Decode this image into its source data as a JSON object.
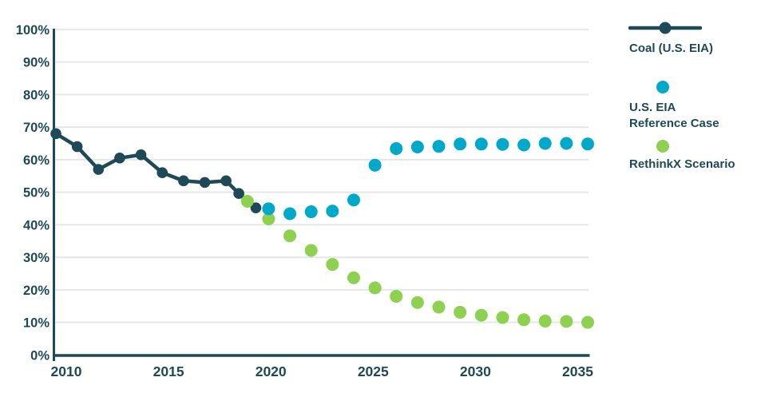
{
  "colors": {
    "navy": "#1e4956",
    "teal": "#00a9c9",
    "green": "#8ed04f",
    "gridline": "#e4e7e9",
    "background": "#ffffff",
    "axis_label": "#1e4956"
  },
  "legend": {
    "position": "right",
    "items": [
      {
        "label": "Coal (U.S. EIA)",
        "marker": "line-with-dot",
        "color": "#1e4956"
      },
      {
        "label": "U.S. EIA Reference Case",
        "marker": "dot",
        "color": "#00a9c9"
      },
      {
        "label": "RethinkX Scenario",
        "marker": "dot",
        "color": "#8ed04f"
      }
    ]
  },
  "chart_data": {
    "type": "line",
    "title": "",
    "xlabel": "",
    "ylabel": "",
    "xlim": [
      2009.9,
      2035.3
    ],
    "ylim": [
      0,
      100
    ],
    "grid": "horizontal-light",
    "legend_position": "right",
    "x_ticks": [
      "2010",
      "2015",
      "2020",
      "2025",
      "2030",
      "2035"
    ],
    "y_ticks": [
      "0%",
      "10%",
      "20%",
      "30%",
      "40%",
      "50%",
      "60%",
      "70%",
      "80%",
      "90%",
      "100%"
    ],
    "y_unit": "percent",
    "series": [
      {
        "name": "Coal (U.S. EIA)",
        "style": "line-with-dots",
        "color": "#1e4956",
        "points": [
          [
            2010,
            68
          ],
          [
            2011,
            64
          ],
          [
            2012,
            57
          ],
          [
            2013,
            60.5
          ],
          [
            2014,
            61.5
          ],
          [
            2015,
            56
          ],
          [
            2016,
            53.5
          ],
          [
            2017,
            53
          ],
          [
            2018,
            53.5
          ],
          [
            2018.6,
            49.6
          ],
          [
            2019.4,
            45.2
          ]
        ]
      },
      {
        "name": "U.S. EIA Reference Case",
        "style": "dots",
        "color": "#00a9c9",
        "points": [
          [
            2020,
            44.9
          ],
          [
            2021,
            43.4
          ],
          [
            2022,
            44
          ],
          [
            2023,
            44.2
          ],
          [
            2024,
            47.6
          ],
          [
            2025,
            58.3
          ],
          [
            2026,
            63.4
          ],
          [
            2027,
            63.9
          ],
          [
            2028,
            64.1
          ],
          [
            2029,
            64.8
          ],
          [
            2030,
            64.8
          ],
          [
            2031,
            64.7
          ],
          [
            2032,
            64.5
          ],
          [
            2033,
            65
          ],
          [
            2034,
            65
          ],
          [
            2035,
            64.8
          ]
        ]
      },
      {
        "name": "RethinkX Scenario",
        "style": "dots",
        "color": "#8ed04f",
        "points": [
          [
            2019,
            47.2
          ],
          [
            2020,
            41.8
          ],
          [
            2021,
            36.6
          ],
          [
            2022,
            32.1
          ],
          [
            2023,
            27.8
          ],
          [
            2024,
            23.7
          ],
          [
            2025,
            20.6
          ],
          [
            2026,
            18
          ],
          [
            2027,
            16.1
          ],
          [
            2028,
            14.7
          ],
          [
            2029,
            13.1
          ],
          [
            2030,
            12.2
          ],
          [
            2031,
            11.5
          ],
          [
            2032,
            10.8
          ],
          [
            2033,
            10.4
          ],
          [
            2034,
            10.3
          ],
          [
            2035,
            10
          ]
        ]
      }
    ]
  }
}
